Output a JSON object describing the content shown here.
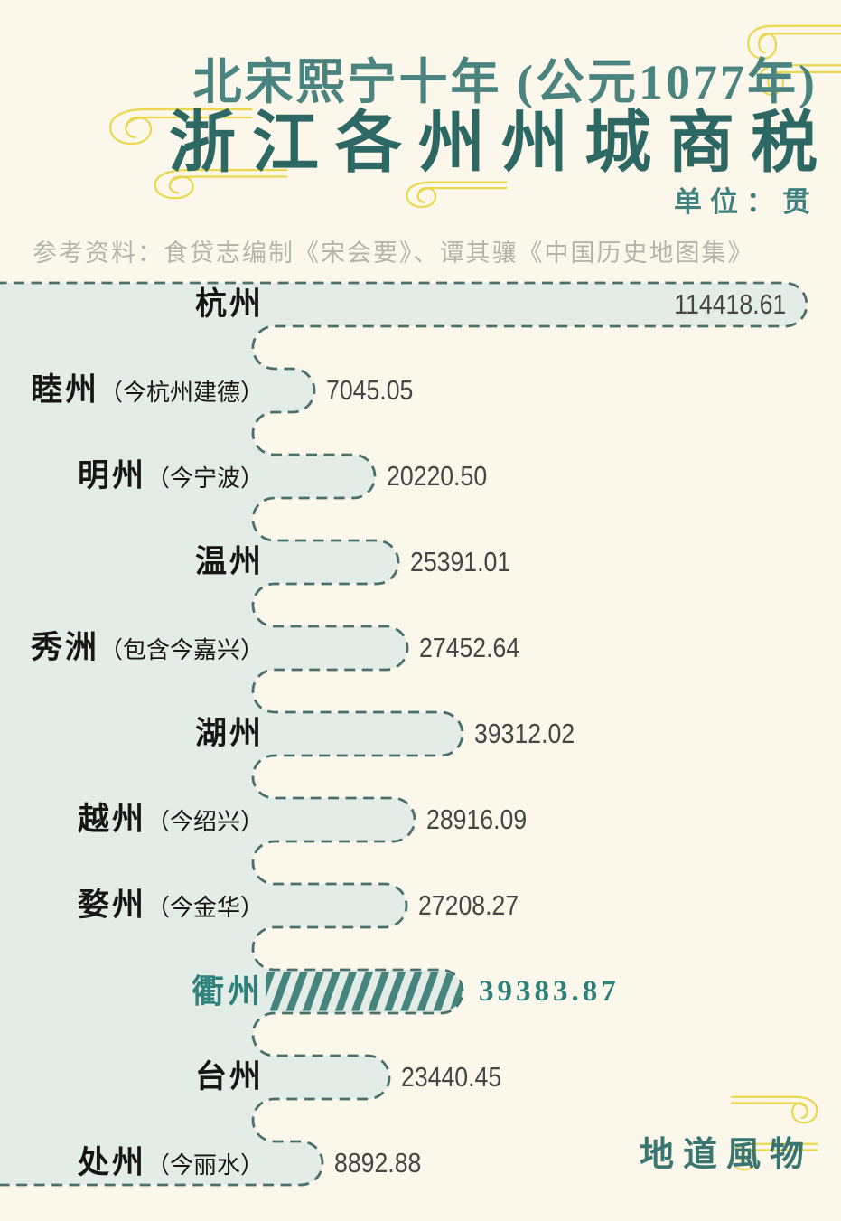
{
  "header": {
    "era_line": "北宋熙宁十年 (公元1077年)",
    "title": "浙江各州州城商税",
    "unit_label": "单位：贯",
    "source": "参考资料：食贷志编制《宋会要》、谭其骧《中国历史地图集》"
  },
  "chart_data": {
    "type": "bar",
    "orientation": "horizontal",
    "unit": "贯",
    "title": "北宋熙宁十年 (公元1077年) 浙江各州州城商税",
    "categories": [
      "杭州",
      "睦州（今杭州建德）",
      "明州（今宁波）",
      "温州",
      "秀洲（包含今嘉兴）",
      "湖州",
      "越州（今绍兴）",
      "婺州（今金华）",
      "衢州",
      "台州",
      "处州（今丽水）"
    ],
    "rows": [
      {
        "name": "杭州",
        "note": "",
        "value": 114418.61,
        "value_inside": true,
        "highlight": false
      },
      {
        "name": "睦州",
        "note": "（今杭州建德）",
        "value": 7045.05,
        "value_inside": false,
        "highlight": false
      },
      {
        "name": "明州",
        "note": "（今宁波）",
        "value": 20220.5,
        "value_inside": false,
        "highlight": false
      },
      {
        "name": "温州",
        "note": "",
        "value": 25391.01,
        "value_inside": false,
        "highlight": false
      },
      {
        "name": "秀洲",
        "note": "（包含今嘉兴）",
        "value": 27452.64,
        "value_inside": false,
        "highlight": false
      },
      {
        "name": "湖州",
        "note": "",
        "value": 39312.02,
        "value_inside": false,
        "highlight": false
      },
      {
        "name": "越州",
        "note": "（今绍兴）",
        "value": 28916.09,
        "value_inside": false,
        "highlight": false
      },
      {
        "name": "婺州",
        "note": "（今金华）",
        "value": 27208.27,
        "value_inside": false,
        "highlight": false
      },
      {
        "name": "衢州",
        "note": "",
        "value": 39383.87,
        "value_inside": false,
        "highlight": true
      },
      {
        "name": "台州",
        "note": "",
        "value": 23440.45,
        "value_inside": false,
        "highlight": false
      },
      {
        "name": "处州",
        "note": "（今丽水）",
        "value": 8892.88,
        "value_inside": false,
        "highlight": false
      }
    ],
    "highlight_category": "衢州",
    "legend": "none",
    "grid": "off"
  },
  "footer": {
    "logo": "地道風物"
  },
  "colors": {
    "background": "#fbf8eb",
    "bar_fill": "#e3ece6",
    "bar_outline": "#4b6f6b",
    "accent_teal": "#2f827b",
    "title_teal_dark": "#2e6864",
    "title_teal_light": "#4a8380",
    "hatch_stripe": "#45857e",
    "ornament_yellow": "#e9d84f",
    "source_gray": "#b5b4ac"
  }
}
